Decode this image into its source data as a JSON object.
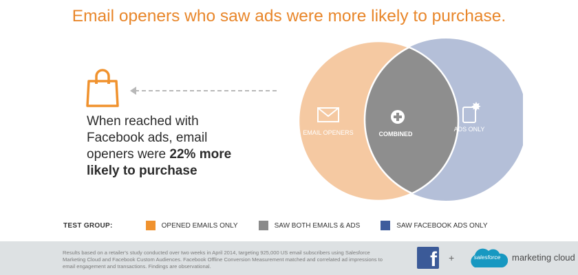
{
  "title": "Email openers who saw ads were more likely to purchase.",
  "callout": {
    "line1": "When reached with",
    "line2": "Facebook ads, email",
    "line3_pre": "openers were ",
    "line3_bold": "22% more",
    "line4_bold": "likely to purchase"
  },
  "venn": {
    "left_label": "EMAIL OPENERS",
    "center_label": "COMBINED",
    "right_label": "ADS ONLY",
    "colors": {
      "left": "#f5c9a2",
      "center": "#8e8e8e",
      "right": "#b4bfd8"
    }
  },
  "legend": {
    "label": "TEST GROUP:",
    "items": [
      {
        "label": "OPENED EMAILS ONLY",
        "color": "#f0922e"
      },
      {
        "label": "SAW BOTH EMAILS & ADS",
        "color": "#8a8a8a"
      },
      {
        "label": "SAW FACEBOOK ADS ONLY",
        "color": "#3e5c9c"
      }
    ]
  },
  "footer": {
    "note": "Results based on a retailer's study conducted over two weeks in April 2014, targeting 925,000 US email subscribers using Salesforce Marketing Cloud and Facebook Custom Audiences. Facebook Offline Conversion Measurement matched and correlated ad impressions to email engagement and transactions. Findings are observational.",
    "plus": "+",
    "salesforce": "salesforce",
    "marketing_cloud": "marketing cloud",
    "facebook_icon": "facebook-logo-icon",
    "salesforce_icon": "salesforce-cloud-icon"
  },
  "icons": {
    "bag": "shopping-bag-icon",
    "arrow": "dashed-arrow-left-icon",
    "envelope": "envelope-icon",
    "plus": "plus-circle-icon",
    "device": "mobile-ad-icon"
  }
}
